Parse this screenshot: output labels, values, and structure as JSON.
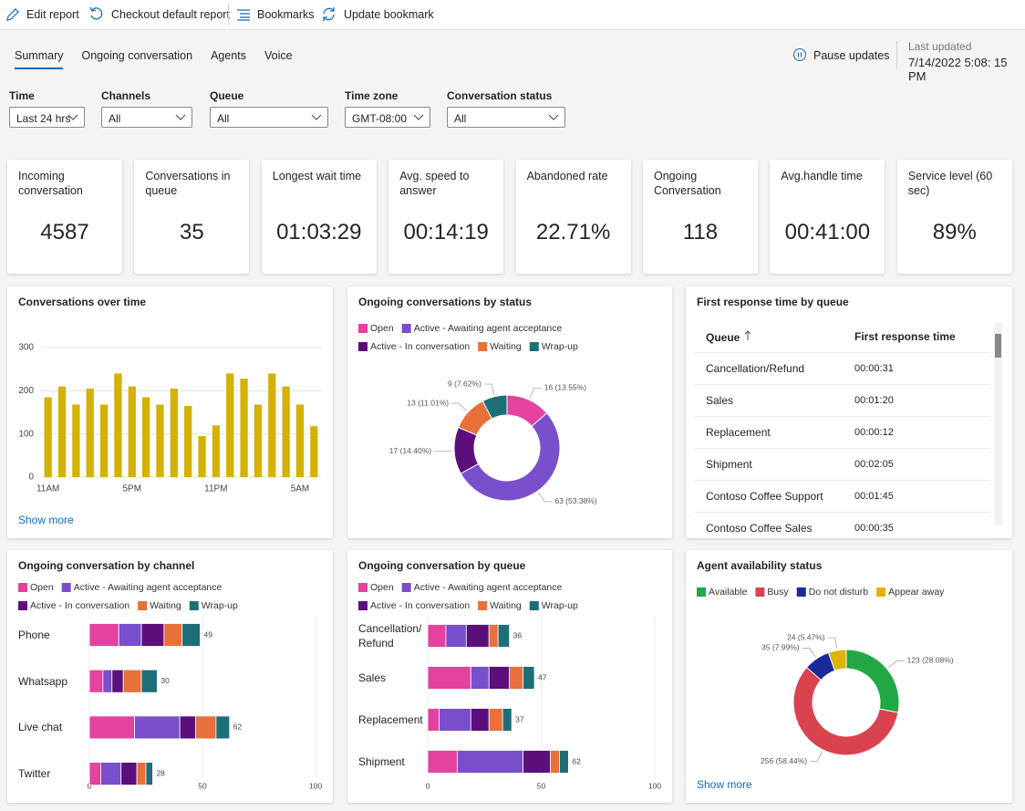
{
  "toolbar": {
    "buttons": [
      "Edit report",
      "Checkout default report",
      "Bookmarks",
      "Update bookmark"
    ]
  },
  "tabs": [
    "Summary",
    "Ongoing conversation",
    "Agents",
    "Voice"
  ],
  "status": {
    "pause": "Pause updates",
    "last_updated_label": "Last updated",
    "last_updated": "7/14/2022 5:08: 15 PM"
  },
  "filters": [
    {
      "label": "Time",
      "value": "Last 24 hrs"
    },
    {
      "label": "Channels",
      "value": "All"
    },
    {
      "label": "Queue",
      "value": "All"
    },
    {
      "label": "Time zone",
      "value": "GMT-08:00"
    },
    {
      "label": "Conversation status",
      "value": "All"
    }
  ],
  "kpis": [
    {
      "label": "Incoming conversation",
      "value": "4587"
    },
    {
      "label": "Conversations in queue",
      "value": "35"
    },
    {
      "label": "Longest wait time",
      "value": "01:03:29"
    },
    {
      "label": "Avg. speed to answer",
      "value": "00:14:19"
    },
    {
      "label": "Abandoned rate",
      "value": "22.71%"
    },
    {
      "label": "Ongoing Conversation",
      "value": "118"
    },
    {
      "label": "Avg.handle time",
      "value": "00:41:00"
    },
    {
      "label": "Service level (60 sec)",
      "value": "89%"
    }
  ],
  "table": {
    "title": "First response time by queue",
    "columns": [
      "Queue",
      "First response time"
    ],
    "rows": [
      [
        "Cancellation/Refund",
        "00:00:31"
      ],
      [
        "Sales",
        "00:01:20"
      ],
      [
        "Replacement",
        "00:00:12"
      ],
      [
        "Shipment",
        "00:02:05"
      ],
      [
        "Contoso Coffee Support",
        "00:01:45"
      ],
      [
        "Contoso Coffee Sales",
        "00:00:35"
      ]
    ]
  },
  "show_more": "Show more",
  "chart_data": [
    {
      "type": "bar",
      "title": "Conversations over time",
      "categories": [
        "11AM",
        null,
        null,
        null,
        null,
        null,
        "5PM",
        null,
        null,
        null,
        null,
        null,
        "11PM",
        null,
        null,
        null,
        null,
        null,
        "5AM",
        null
      ],
      "values": [
        185,
        210,
        168,
        205,
        168,
        240,
        210,
        185,
        168,
        205,
        165,
        95,
        120,
        240,
        228,
        168,
        240,
        210,
        168,
        118
      ],
      "color": "#d4b106",
      "ylim": [
        0,
        300
      ],
      "yticks": [
        0,
        100,
        200,
        300
      ],
      "grid": true
    },
    {
      "type": "pie",
      "donut": true,
      "title": "Ongoing conversations by status",
      "categories": [
        "Open",
        "Active - Awaiting agent acceptance",
        "Active - In conversation",
        "Waiting",
        "Wrap-up"
      ],
      "values": [
        16,
        63,
        17,
        13,
        9
      ],
      "value_labels": [
        "16 (13.55%)",
        "63 (53.38%)",
        "17 (14.40%)",
        "13 (11.01%)",
        "9 (7.62%)"
      ],
      "colors": [
        "#e3439f",
        "#7a4fcb",
        "#5c0f7a",
        "#e8703a",
        "#1e6e78"
      ]
    },
    {
      "type": "stacked_bar",
      "orientation": "horizontal",
      "title": "Ongoing conversation by channel",
      "categories": [
        "Phone",
        "Whatsapp",
        "Live chat",
        "Twitter"
      ],
      "series": [
        {
          "name": "Open",
          "color": "#e3439f",
          "values": [
            13,
            6,
            20,
            5
          ]
        },
        {
          "name": "Active - Awaiting agent acceptance",
          "color": "#7a4fcb",
          "values": [
            10,
            4,
            20,
            9
          ]
        },
        {
          "name": "Active - In conversation",
          "color": "#5c0f7a",
          "values": [
            10,
            5,
            7,
            7
          ]
        },
        {
          "name": "Waiting",
          "color": "#e8703a",
          "values": [
            8,
            8,
            9,
            4
          ]
        },
        {
          "name": "Wrap-up",
          "color": "#1e6e78",
          "values": [
            8,
            7,
            6,
            3
          ]
        }
      ],
      "total_labels": [
        49,
        30,
        62,
        28
      ],
      "xlim": [
        0,
        100
      ],
      "xticks": [
        0,
        50,
        100
      ],
      "grid": true
    },
    {
      "type": "stacked_bar",
      "orientation": "horizontal",
      "title": "Ongoing conversation by queue",
      "categories": [
        "Cancellation/Refund",
        "Sales",
        "Replacement",
        "Shipment"
      ],
      "series": [
        {
          "name": "Open",
          "color": "#e3439f",
          "values": [
            8,
            19,
            5,
            13
          ]
        },
        {
          "name": "Active - Awaiting agent acceptance",
          "color": "#7a4fcb",
          "values": [
            9,
            8,
            14,
            29
          ]
        },
        {
          "name": "Active - In conversation",
          "color": "#5c0f7a",
          "values": [
            10,
            9,
            8,
            12
          ]
        },
        {
          "name": "Waiting",
          "color": "#e8703a",
          "values": [
            4,
            6,
            6,
            4
          ]
        },
        {
          "name": "Wrap-up",
          "color": "#1e6e78",
          "values": [
            5,
            5,
            4,
            4
          ]
        }
      ],
      "total_labels": [
        36,
        47,
        37,
        62
      ],
      "xlim": [
        0,
        100
      ],
      "xticks": [
        0,
        50,
        100
      ],
      "grid": true
    },
    {
      "type": "pie",
      "donut": true,
      "title": "Agent availability status",
      "categories": [
        "Available",
        "Busy",
        "Do not disturb",
        "Appear away"
      ],
      "values": [
        123,
        256,
        35,
        24
      ],
      "value_labels": [
        "123 (28.08%)",
        "256 (58.44%)",
        "35 (7.99%)",
        "24 (5.47%)"
      ],
      "colors": [
        "#22a845",
        "#d9434e",
        "#1b2a9b",
        "#dfb400"
      ]
    }
  ]
}
